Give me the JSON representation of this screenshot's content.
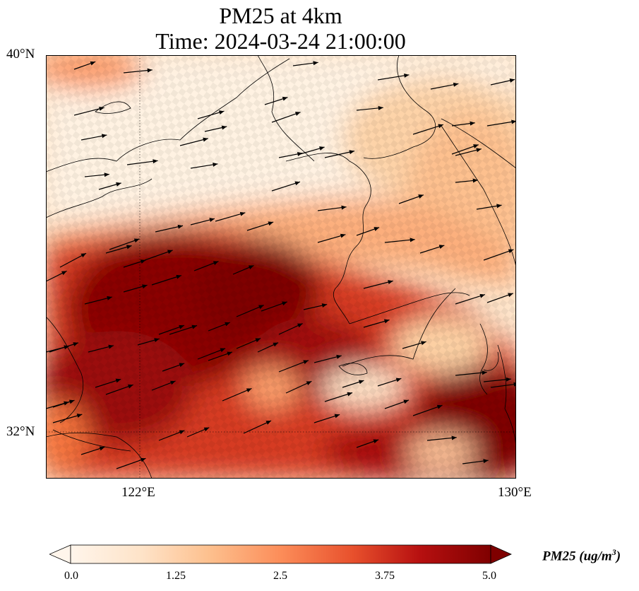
{
  "title": {
    "line1": "PM25 at 4km",
    "line2": "Time: 2024-03-24 21:00:00"
  },
  "axes": {
    "lat_labels": [
      "40°N",
      "32°N"
    ],
    "lon_labels": [
      "122°E",
      "130°E"
    ]
  },
  "colorbar": {
    "ticks": [
      "0.0",
      "1.25",
      "2.5",
      "3.75",
      "5.0"
    ],
    "label_main": "PM25 (ug/m",
    "label_sup": "3",
    "label_end": ")",
    "colors": [
      "#fff5eb",
      "#fdd8b3",
      "#fdae6b",
      "#f4743c",
      "#d8301c",
      "#a80d0d",
      "#7f0000"
    ]
  },
  "map_extent": {
    "lon": [
      120,
      130
    ],
    "lat": [
      31,
      40
    ]
  }
}
